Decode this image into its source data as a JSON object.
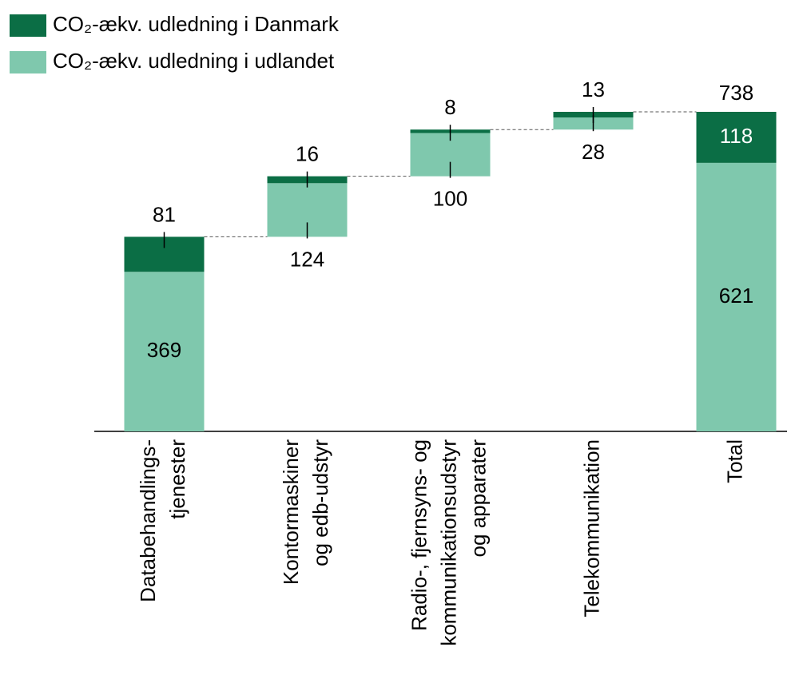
{
  "chart_data": {
    "type": "waterfall",
    "categories": [
      [
        "Databehandlings-",
        "tjenester"
      ],
      [
        "Kontormaskiner",
        "og edb-udstyr"
      ],
      [
        "Radio-, fjernsyns- og",
        "kommunikationsudstyr",
        "og apparater"
      ],
      [
        "Telekommunikation"
      ],
      [
        "Total"
      ]
    ],
    "series": [
      {
        "name": "CO₂-ækv. udledning i Danmark",
        "color": "#0b6e45",
        "values": [
          81,
          16,
          8,
          13,
          118
        ]
      },
      {
        "name": "CO₂-ækv. udledning i udlandet",
        "color": "#7fc8ad",
        "values": [
          369,
          124,
          100,
          28,
          621
        ]
      }
    ],
    "total": 738
  }
}
